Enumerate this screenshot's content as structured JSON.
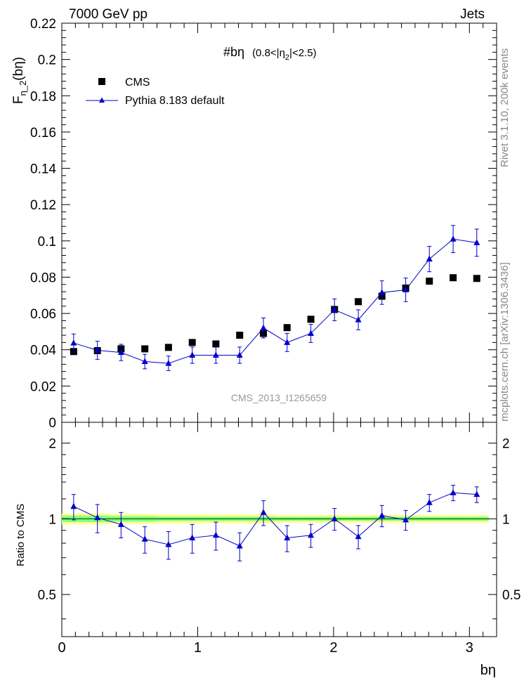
{
  "header": {
    "left": "7000 GeV pp",
    "right": "Jets"
  },
  "side_labels": {
    "rivet": "Rivet 3.1.10,  200k events",
    "mcplots": "mcplots.cern.ch [arXiv:1306.3436]"
  },
  "chart_data": [
    {
      "type": "scatter",
      "panel": "main",
      "title": "#bη",
      "title_suffix": "(0.8<|η",
      "title_sub": "2",
      "title_end": "|<2.5)",
      "ylabel": "F",
      "ylabel_sub": "η_2",
      "ylabel_end": "(bη)",
      "watermark": "CMS_2013_I1265659",
      "xlim": [
        0,
        3.2
      ],
      "ylim": [
        0,
        0.22
      ],
      "yticks": [
        0,
        0.02,
        0.04,
        0.06,
        0.08,
        0.1,
        0.12,
        0.14,
        0.16,
        0.18,
        0.2,
        0.22
      ],
      "ytick_labels": [
        "0",
        "0.02",
        "0.04",
        "0.06",
        "0.08",
        "0.1",
        "0.12",
        "0.14",
        "0.16",
        "0.18",
        "0.2",
        "0.22"
      ],
      "legend_position": "top-left",
      "x": [
        0.087,
        0.262,
        0.436,
        0.611,
        0.785,
        0.96,
        1.134,
        1.309,
        1.484,
        1.658,
        1.833,
        2.007,
        2.182,
        2.356,
        2.531,
        2.705,
        2.88,
        3.054
      ],
      "series": [
        {
          "name": "CMS",
          "marker": "square",
          "color": "#000000",
          "values": [
            0.039,
            0.0395,
            0.0405,
            0.0405,
            0.0413,
            0.044,
            0.0432,
            0.048,
            0.049,
            0.0522,
            0.0568,
            0.0622,
            0.0665,
            0.0695,
            0.074,
            0.0778,
            0.0797,
            0.0793
          ]
        },
        {
          "name": "Pythia 8.183 default",
          "marker": "triangle",
          "color": "#0000cc",
          "values": [
            0.0437,
            0.0397,
            0.0385,
            0.0335,
            0.0325,
            0.037,
            0.037,
            0.037,
            0.052,
            0.044,
            0.049,
            0.062,
            0.0565,
            0.0715,
            0.073,
            0.09,
            0.101,
            0.099
          ],
          "errors": [
            0.005,
            0.005,
            0.0045,
            0.004,
            0.004,
            0.0045,
            0.0045,
            0.0045,
            0.0055,
            0.005,
            0.005,
            0.006,
            0.0055,
            0.0065,
            0.0065,
            0.007,
            0.0075,
            0.0075
          ]
        }
      ]
    },
    {
      "type": "line",
      "panel": "ratio",
      "ylabel": "Ratio to CMS",
      "xlabel": "bη",
      "xlim": [
        0,
        3.2
      ],
      "ylim": [
        0.34,
        2.42
      ],
      "yticks": [
        0.5,
        1,
        2
      ],
      "ytick_labels": [
        "0.5",
        "1",
        "2"
      ],
      "xticks": [
        0,
        1,
        2,
        3
      ],
      "xtick_labels": [
        "0",
        "1",
        "2",
        "3"
      ],
      "x": [
        0.087,
        0.262,
        0.436,
        0.611,
        0.785,
        0.96,
        1.134,
        1.309,
        1.484,
        1.658,
        1.833,
        2.007,
        2.182,
        2.356,
        2.531,
        2.705,
        2.88,
        3.054
      ],
      "band_outer": [
        0.05,
        0.05,
        0.045,
        0.045,
        0.04,
        0.04,
        0.04,
        0.04,
        0.04,
        0.035,
        0.035,
        0.035,
        0.035,
        0.035,
        0.035,
        0.035,
        0.035,
        0.035
      ],
      "band_inner": [
        0.03,
        0.03,
        0.025,
        0.025,
        0.02,
        0.02,
        0.02,
        0.02,
        0.02,
        0.018,
        0.018,
        0.018,
        0.018,
        0.018,
        0.018,
        0.018,
        0.018,
        0.018
      ],
      "band_colors": {
        "outer": "#ffff88",
        "inner": "#88ff88",
        "ref": "#006600"
      },
      "series": [
        {
          "name": "Pythia 8.183 default",
          "color": "#0000cc",
          "values": [
            1.12,
            1.01,
            0.95,
            0.83,
            0.79,
            0.84,
            0.86,
            0.78,
            1.06,
            0.84,
            0.86,
            1.0,
            0.85,
            1.03,
            0.99,
            1.16,
            1.27,
            1.25
          ],
          "errors": [
            0.13,
            0.13,
            0.11,
            0.1,
            0.1,
            0.11,
            0.11,
            0.1,
            0.12,
            0.1,
            0.09,
            0.1,
            0.09,
            0.1,
            0.09,
            0.09,
            0.09,
            0.09
          ]
        }
      ]
    }
  ]
}
